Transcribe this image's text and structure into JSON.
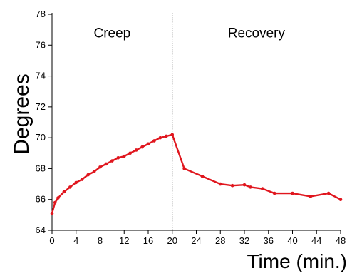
{
  "chart_data": {
    "type": "line",
    "xlabel": "Time (min.)",
    "ylabel": "Degrees",
    "xlim": [
      0,
      48
    ],
    "ylim": [
      64,
      78
    ],
    "x_ticks": [
      0,
      4,
      8,
      12,
      16,
      20,
      24,
      28,
      32,
      36,
      40,
      44,
      48
    ],
    "y_ticks": [
      64,
      66,
      68,
      70,
      72,
      74,
      76,
      78
    ],
    "divider_x": 20,
    "annotations": [
      {
        "text": "Creep",
        "x": 10,
        "y": 76.5
      },
      {
        "text": "Recovery",
        "x": 34,
        "y": 76.5
      }
    ],
    "series": [
      {
        "color": "#e0161e",
        "points": [
          [
            0,
            65.1
          ],
          [
            0.5,
            65.8
          ],
          [
            1,
            66.1
          ],
          [
            2,
            66.5
          ],
          [
            3,
            66.8
          ],
          [
            4,
            67.1
          ],
          [
            5,
            67.3
          ],
          [
            6,
            67.6
          ],
          [
            7,
            67.8
          ],
          [
            8,
            68.1
          ],
          [
            9,
            68.3
          ],
          [
            10,
            68.5
          ],
          [
            11,
            68.7
          ],
          [
            12,
            68.8
          ],
          [
            13,
            69.0
          ],
          [
            14,
            69.2
          ],
          [
            15,
            69.4
          ],
          [
            16,
            69.6
          ],
          [
            17,
            69.8
          ],
          [
            18,
            70.0
          ],
          [
            19,
            70.1
          ],
          [
            20,
            70.2
          ],
          [
            22,
            68.0
          ],
          [
            25,
            67.5
          ],
          [
            28,
            67.0
          ],
          [
            30,
            66.9
          ],
          [
            32,
            66.95
          ],
          [
            33,
            66.8
          ],
          [
            35,
            66.7
          ],
          [
            37,
            66.4
          ],
          [
            40,
            66.4
          ],
          [
            43,
            66.2
          ],
          [
            46,
            66.4
          ],
          [
            48,
            66.0
          ]
        ]
      }
    ]
  }
}
